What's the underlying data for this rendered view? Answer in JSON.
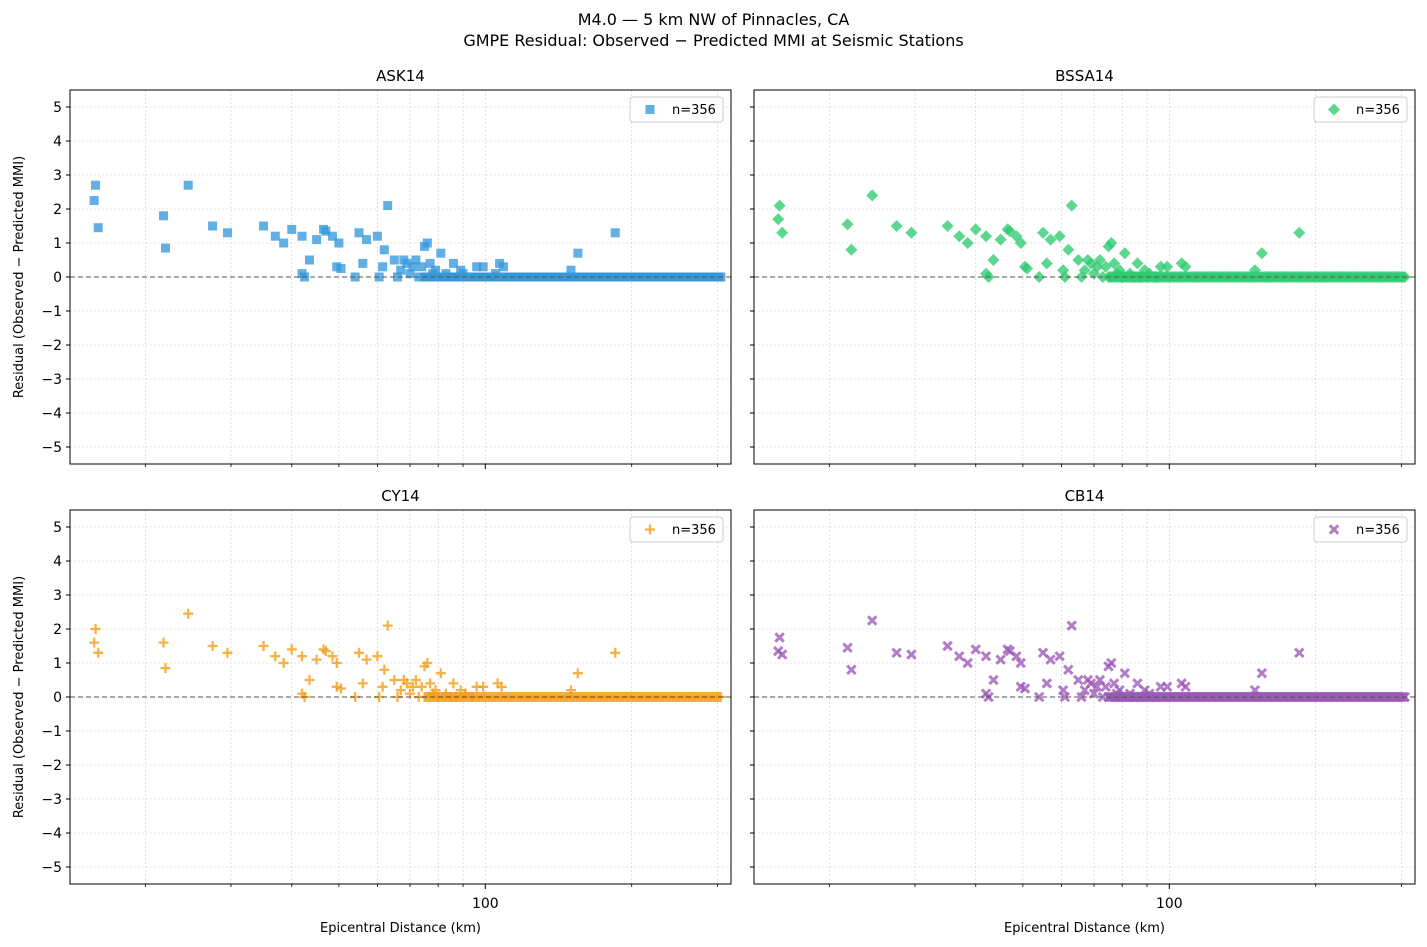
{
  "suptitle": {
    "line1": "M4.0 — 5 km NW of Pinnacles, CA",
    "line2": "GMPE Residual: Observed − Predicted MMI at Seismic Stations"
  },
  "chart_data": {
    "type": "scatter",
    "x_scale": "log",
    "xlim": [
      14,
      320
    ],
    "ylim": [
      -5.5,
      5.5
    ],
    "x_tick_major": [
      100
    ],
    "x_tick_minor": [
      20,
      30,
      40,
      50,
      60,
      70,
      80,
      90,
      200,
      300
    ],
    "y_ticks": [
      -5,
      -4,
      -3,
      -2,
      -1,
      0,
      1,
      2,
      3,
      4,
      5
    ],
    "y_tick_labels": [
      "−5",
      "−4",
      "−3",
      "−2",
      "−1",
      "0",
      "1",
      "2",
      "3",
      "4",
      "5"
    ],
    "x_tick_labels": [
      "100"
    ],
    "grid": true,
    "zero_line": 0,
    "xlabel": "Epicentral Distance (km)",
    "ylabel": "Residual (Observed − Predicted MMI)",
    "legend_position": "top-right",
    "panels": [
      {
        "title": "ASK14",
        "marker": "square",
        "color": "#3498db",
        "legend_label": "n=356",
        "points": [
          [
            15.8,
            2.7
          ],
          [
            15.7,
            2.25
          ],
          [
            16.0,
            1.45
          ],
          [
            21.8,
            1.8
          ],
          [
            22.0,
            0.85
          ],
          [
            24.5,
            2.7
          ],
          [
            27.5,
            1.5
          ],
          [
            29.5,
            1.3
          ],
          [
            35.0,
            1.5
          ],
          [
            37.0,
            1.2
          ],
          [
            38.5,
            1.0
          ],
          [
            40.0,
            1.4
          ],
          [
            42.0,
            1.2
          ],
          [
            43.5,
            0.5
          ],
          [
            45.0,
            1.1
          ],
          [
            46.5,
            1.4
          ],
          [
            47.0,
            1.35
          ],
          [
            48.5,
            1.2
          ],
          [
            49.5,
            0.3
          ],
          [
            50.0,
            1.0
          ],
          [
            50.5,
            0.25
          ],
          [
            42.0,
            0.1
          ],
          [
            42.5,
            0.0
          ],
          [
            54.0,
            0.0
          ],
          [
            55.0,
            1.3
          ],
          [
            56.0,
            0.4
          ],
          [
            57.0,
            1.1
          ],
          [
            60.0,
            1.2
          ],
          [
            61.5,
            0.3
          ],
          [
            62.0,
            0.8
          ],
          [
            60.5,
            0.0
          ],
          [
            63.0,
            2.1
          ],
          [
            65.0,
            0.5
          ],
          [
            66.0,
            0.0
          ],
          [
            67.0,
            0.2
          ],
          [
            68.0,
            0.5
          ],
          [
            69.0,
            0.4
          ],
          [
            70.0,
            0.1
          ],
          [
            71.0,
            0.3
          ],
          [
            72.0,
            0.5
          ],
          [
            73.0,
            0.0
          ],
          [
            74.0,
            0.3
          ],
          [
            75.0,
            0.9
          ],
          [
            76.0,
            1.0
          ],
          [
            77.0,
            0.4
          ],
          [
            78.0,
            0.1
          ],
          [
            79.0,
            0.2
          ],
          [
            80.0,
            0.0
          ],
          [
            81.0,
            0.7
          ],
          [
            83.0,
            0.1
          ],
          [
            85.0,
            0.0
          ],
          [
            86.0,
            0.4
          ],
          [
            87.0,
            0.0
          ],
          [
            89.0,
            0.2
          ],
          [
            90.0,
            0.1
          ],
          [
            91.0,
            0.0
          ],
          [
            94.0,
            0.0
          ],
          [
            96.0,
            0.3
          ],
          [
            99.0,
            0.3
          ],
          [
            105.0,
            0.1
          ],
          [
            107.0,
            0.4
          ],
          [
            109.0,
            0.3
          ],
          [
            150.0,
            0.2
          ],
          [
            155.0,
            0.7
          ],
          [
            185.0,
            1.3
          ]
        ],
        "baseline_range": [
          75,
          305
        ],
        "baseline_value": 0.0
      },
      {
        "title": "BSSA14",
        "marker": "diamond",
        "color": "#2ecc71",
        "legend_label": "n=356",
        "points": [
          [
            15.8,
            2.1
          ],
          [
            15.7,
            1.7
          ],
          [
            16.0,
            1.3
          ],
          [
            21.8,
            1.55
          ],
          [
            22.2,
            0.8
          ],
          [
            24.5,
            2.4
          ],
          [
            27.5,
            1.5
          ],
          [
            29.5,
            1.3
          ],
          [
            35.0,
            1.5
          ],
          [
            37.0,
            1.2
          ],
          [
            38.5,
            1.0
          ],
          [
            40.0,
            1.4
          ],
          [
            42.0,
            1.2
          ],
          [
            43.5,
            0.5
          ],
          [
            45.0,
            1.1
          ],
          [
            46.5,
            1.4
          ],
          [
            47.0,
            1.35
          ],
          [
            48.5,
            1.2
          ],
          [
            49.5,
            1.0
          ],
          [
            50.5,
            0.3
          ],
          [
            51.0,
            0.25
          ],
          [
            42.0,
            0.1
          ],
          [
            42.5,
            0.0
          ],
          [
            54.0,
            0.0
          ],
          [
            55.0,
            1.3
          ],
          [
            56.0,
            0.4
          ],
          [
            57.0,
            1.1
          ],
          [
            59.5,
            1.2
          ],
          [
            60.5,
            0.2
          ],
          [
            61.0,
            0.0
          ],
          [
            62.0,
            0.8
          ],
          [
            63.0,
            2.1
          ],
          [
            65.0,
            0.5
          ],
          [
            66.0,
            0.0
          ],
          [
            67.0,
            0.2
          ],
          [
            68.0,
            0.5
          ],
          [
            69.0,
            0.4
          ],
          [
            70.0,
            0.1
          ],
          [
            71.0,
            0.3
          ],
          [
            72.0,
            0.5
          ],
          [
            73.0,
            0.0
          ],
          [
            74.0,
            0.3
          ],
          [
            75.0,
            0.9
          ],
          [
            76.0,
            1.0
          ],
          [
            77.0,
            0.4
          ],
          [
            78.0,
            0.1
          ],
          [
            79.0,
            0.2
          ],
          [
            80.0,
            0.0
          ],
          [
            81.0,
            0.7
          ],
          [
            83.0,
            0.1
          ],
          [
            85.0,
            0.0
          ],
          [
            86.0,
            0.4
          ],
          [
            87.0,
            0.0
          ],
          [
            89.0,
            0.2
          ],
          [
            91.0,
            0.1
          ],
          [
            94.0,
            0.0
          ],
          [
            96.0,
            0.3
          ],
          [
            99.0,
            0.3
          ],
          [
            106.0,
            0.4
          ],
          [
            108.0,
            0.3
          ],
          [
            150.0,
            0.2
          ],
          [
            155.0,
            0.7
          ],
          [
            185.0,
            1.3
          ]
        ],
        "baseline_range": [
          75,
          305
        ],
        "baseline_value": 0.0
      },
      {
        "title": "CY14",
        "marker": "plus",
        "color": "#f39c12",
        "legend_label": "n=356",
        "points": [
          [
            15.8,
            2.0
          ],
          [
            15.7,
            1.6
          ],
          [
            16.0,
            1.3
          ],
          [
            21.8,
            1.6
          ],
          [
            22.0,
            0.85
          ],
          [
            24.5,
            2.45
          ],
          [
            27.5,
            1.5
          ],
          [
            29.5,
            1.3
          ],
          [
            35.0,
            1.5
          ],
          [
            37.0,
            1.2
          ],
          [
            38.5,
            1.0
          ],
          [
            40.0,
            1.4
          ],
          [
            42.0,
            1.2
          ],
          [
            43.5,
            0.5
          ],
          [
            45.0,
            1.1
          ],
          [
            46.5,
            1.4
          ],
          [
            47.0,
            1.35
          ],
          [
            48.5,
            1.2
          ],
          [
            49.5,
            1.0
          ],
          [
            49.5,
            0.3
          ],
          [
            50.5,
            0.25
          ],
          [
            42.0,
            0.1
          ],
          [
            42.5,
            0.0
          ],
          [
            54.0,
            0.0
          ],
          [
            55.0,
            1.3
          ],
          [
            56.0,
            0.4
          ],
          [
            57.0,
            1.1
          ],
          [
            60.0,
            1.2
          ],
          [
            61.5,
            0.3
          ],
          [
            62.0,
            0.8
          ],
          [
            60.5,
            0.0
          ],
          [
            63.0,
            2.1
          ],
          [
            65.0,
            0.5
          ],
          [
            66.0,
            0.0
          ],
          [
            67.0,
            0.2
          ],
          [
            68.0,
            0.5
          ],
          [
            69.0,
            0.4
          ],
          [
            70.0,
            0.1
          ],
          [
            71.0,
            0.3
          ],
          [
            72.0,
            0.5
          ],
          [
            73.0,
            0.0
          ],
          [
            74.0,
            0.3
          ],
          [
            75.0,
            0.9
          ],
          [
            76.0,
            1.0
          ],
          [
            77.0,
            0.4
          ],
          [
            78.0,
            0.1
          ],
          [
            79.0,
            0.2
          ],
          [
            80.0,
            0.0
          ],
          [
            81.0,
            0.7
          ],
          [
            83.0,
            0.1
          ],
          [
            85.0,
            0.0
          ],
          [
            86.0,
            0.4
          ],
          [
            87.0,
            0.0
          ],
          [
            89.0,
            0.2
          ],
          [
            91.0,
            0.1
          ],
          [
            94.0,
            0.0
          ],
          [
            96.0,
            0.3
          ],
          [
            99.0,
            0.3
          ],
          [
            106.0,
            0.4
          ],
          [
            108.0,
            0.3
          ],
          [
            150.0,
            0.2
          ],
          [
            155.0,
            0.7
          ],
          [
            185.0,
            1.3
          ]
        ],
        "baseline_range": [
          75,
          305
        ],
        "baseline_value": 0.0
      },
      {
        "title": "CB14",
        "marker": "x",
        "color": "#9b59b6",
        "legend_label": "n=356",
        "points": [
          [
            15.8,
            1.75
          ],
          [
            15.7,
            1.35
          ],
          [
            16.0,
            1.25
          ],
          [
            21.8,
            1.45
          ],
          [
            22.2,
            0.8
          ],
          [
            24.5,
            2.25
          ],
          [
            27.5,
            1.3
          ],
          [
            29.5,
            1.25
          ],
          [
            35.0,
            1.5
          ],
          [
            37.0,
            1.2
          ],
          [
            38.5,
            1.0
          ],
          [
            40.0,
            1.4
          ],
          [
            42.0,
            1.2
          ],
          [
            43.5,
            0.5
          ],
          [
            45.0,
            1.1
          ],
          [
            46.5,
            1.4
          ],
          [
            47.0,
            1.35
          ],
          [
            48.5,
            1.2
          ],
          [
            49.5,
            1.0
          ],
          [
            49.5,
            0.3
          ],
          [
            50.5,
            0.25
          ],
          [
            42.0,
            0.1
          ],
          [
            42.5,
            0.0
          ],
          [
            54.0,
            0.0
          ],
          [
            55.0,
            1.3
          ],
          [
            56.0,
            0.4
          ],
          [
            57.0,
            1.1
          ],
          [
            59.5,
            1.2
          ],
          [
            60.5,
            0.2
          ],
          [
            61.0,
            0.0
          ],
          [
            62.0,
            0.8
          ],
          [
            63.0,
            2.1
          ],
          [
            65.0,
            0.5
          ],
          [
            66.0,
            0.0
          ],
          [
            67.0,
            0.2
          ],
          [
            68.0,
            0.5
          ],
          [
            69.0,
            0.4
          ],
          [
            70.0,
            0.1
          ],
          [
            71.0,
            0.3
          ],
          [
            72.0,
            0.5
          ],
          [
            73.0,
            0.0
          ],
          [
            74.0,
            0.3
          ],
          [
            75.0,
            0.9
          ],
          [
            76.0,
            1.0
          ],
          [
            77.0,
            0.4
          ],
          [
            78.0,
            0.1
          ],
          [
            79.0,
            0.2
          ],
          [
            80.0,
            0.0
          ],
          [
            81.0,
            0.7
          ],
          [
            83.0,
            0.1
          ],
          [
            85.0,
            0.0
          ],
          [
            86.0,
            0.4
          ],
          [
            87.0,
            0.0
          ],
          [
            89.0,
            0.2
          ],
          [
            91.0,
            0.1
          ],
          [
            94.0,
            0.0
          ],
          [
            96.0,
            0.3
          ],
          [
            99.0,
            0.3
          ],
          [
            106.0,
            0.4
          ],
          [
            108.0,
            0.3
          ],
          [
            150.0,
            0.2
          ],
          [
            155.0,
            0.7
          ],
          [
            185.0,
            1.3
          ]
        ],
        "baseline_range": [
          75,
          305
        ],
        "baseline_value": 0.0
      }
    ]
  }
}
